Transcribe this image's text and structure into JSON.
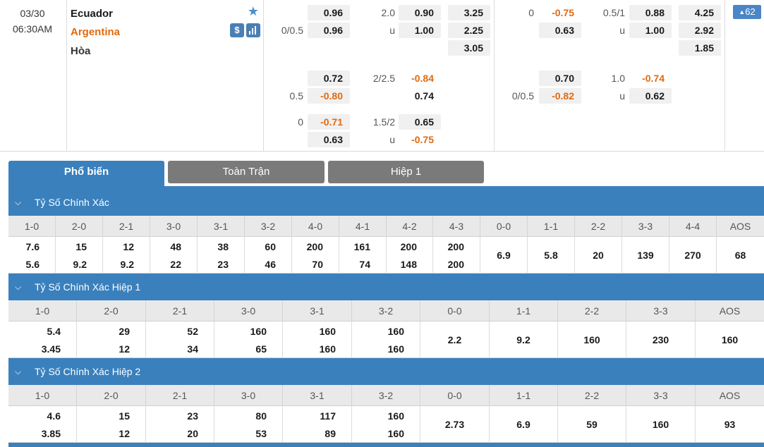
{
  "match": {
    "date": "03/30",
    "time": "06:30AM",
    "home": "Ecuador",
    "away": "Argentina",
    "draw": "Hòa",
    "more_count": "62",
    "icons": {
      "favorite": "star-icon",
      "money": "dollar-icon",
      "stats": "bar-chart-icon",
      "more": "triangle-up-icon"
    },
    "accent_color": "#e06a10",
    "full_time": {
      "line1": {
        "handicap_home": "0.96",
        "ou_line": "2.0",
        "ou_over": "0.90",
        "x12_home": "3.25"
      },
      "line1b": {
        "handicap_label": "0/0.5",
        "handicap_away": "0.96",
        "ou_label": "u",
        "ou_under": "1.00",
        "x12_away": "2.25",
        "x12_draw": "3.05"
      },
      "line2": {
        "handicap_home": "0.72",
        "ou_line": "2/2.5",
        "ou_over": "-0.84",
        "handicap_label": "0.5",
        "handicap_away": "-0.80",
        "ou_under": "0.74"
      },
      "line3": {
        "handicap_label": "0",
        "handicap_home": "-0.71",
        "ou_line": "1.5/2",
        "ou_over": "0.65",
        "handicap_away": "0.63",
        "ou_label": "u",
        "ou_under": "-0.75"
      }
    },
    "first_half": {
      "line1": {
        "handicap_label": "0",
        "handicap_home": "-0.75",
        "ou_line": "0.5/1",
        "ou_over": "0.88",
        "x12_home": "4.25",
        "handicap_away": "0.63",
        "ou_label": "u",
        "ou_under": "1.00",
        "x12_away": "2.92",
        "x12_draw": "1.85"
      },
      "line2": {
        "handicap_home": "0.70",
        "ou_line": "1.0",
        "ou_over": "-0.74",
        "handicap_label": "0/0.5",
        "handicap_away": "-0.82",
        "ou_label": "u",
        "ou_under": "0.62"
      }
    }
  },
  "tabs": [
    {
      "label": "Phổ biến",
      "active": true
    },
    {
      "label": "Toàn Trận",
      "active": false
    },
    {
      "label": "Hiệp 1",
      "active": false
    }
  ],
  "sections": [
    {
      "title": "Tỷ Số Chính Xác",
      "headers": [
        "1-0",
        "2-0",
        "2-1",
        "3-0",
        "3-1",
        "3-2",
        "4-0",
        "4-1",
        "4-2",
        "4-3",
        "0-0",
        "1-1",
        "2-2",
        "3-3",
        "4-4",
        "AOS"
      ],
      "values": [
        [
          "7.6",
          "5.6"
        ],
        [
          "15",
          "9.2"
        ],
        [
          "12",
          "9.2"
        ],
        [
          "48",
          "22"
        ],
        [
          "38",
          "23"
        ],
        [
          "60",
          "46"
        ],
        [
          "200",
          "70"
        ],
        [
          "161",
          "74"
        ],
        [
          "200",
          "148"
        ],
        [
          "200",
          "200"
        ],
        [
          "6.9"
        ],
        [
          "5.8"
        ],
        [
          "20"
        ],
        [
          "139"
        ],
        [
          "270"
        ],
        [
          "68"
        ]
      ]
    },
    {
      "title": "Tỷ Số Chính Xác Hiệp 1",
      "headers": [
        "1-0",
        "2-0",
        "2-1",
        "3-0",
        "3-1",
        "3-2",
        "0-0",
        "1-1",
        "2-2",
        "3-3",
        "AOS"
      ],
      "values": [
        [
          "5.4",
          "3.45"
        ],
        [
          "29",
          "12"
        ],
        [
          "52",
          "34"
        ],
        [
          "160",
          "65"
        ],
        [
          "160",
          "160"
        ],
        [
          "160",
          "160"
        ],
        [
          "2.2"
        ],
        [
          "9.2"
        ],
        [
          "160"
        ],
        [
          "230"
        ],
        [
          "160"
        ]
      ]
    },
    {
      "title": "Tỷ Số Chính Xác Hiệp 2",
      "headers": [
        "1-0",
        "2-0",
        "2-1",
        "3-0",
        "3-1",
        "3-2",
        "0-0",
        "1-1",
        "2-2",
        "3-3",
        "AOS"
      ],
      "values": [
        [
          "4.6",
          "3.85"
        ],
        [
          "15",
          "12"
        ],
        [
          "23",
          "20"
        ],
        [
          "80",
          "53"
        ],
        [
          "117",
          "89"
        ],
        [
          "160",
          "160"
        ],
        [
          "2.73"
        ],
        [
          "6.9"
        ],
        [
          "59"
        ],
        [
          "160"
        ],
        [
          "93"
        ]
      ]
    }
  ]
}
